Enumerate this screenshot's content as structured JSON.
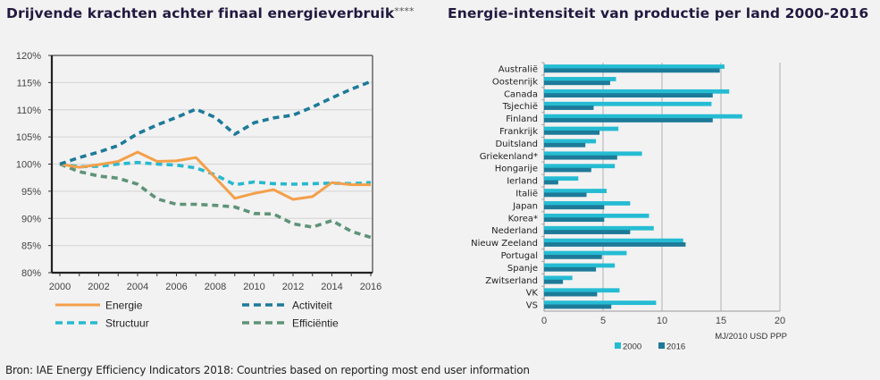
{
  "titles": {
    "left": "Drijvende krachten achter finaal energieverbruik",
    "left_suffix": "****",
    "right": "Energie-intensiteit van productie per land 2000-2016"
  },
  "footer": "Bron: IAE Energy Efficiency Indicators 2018: Countries based on reporting most end user information",
  "chart_data": [
    {
      "type": "line",
      "title": "Drijvende krachten achter finaal energieverbruik****",
      "xlabel": "",
      "ylabel": "",
      "x": [
        2000,
        2001,
        2002,
        2003,
        2004,
        2005,
        2006,
        2007,
        2008,
        2009,
        2010,
        2011,
        2012,
        2013,
        2014,
        2015,
        2016
      ],
      "xticks": [
        "2000",
        "2002",
        "2004",
        "2006",
        "2008",
        "2010",
        "2012",
        "2014",
        "2016"
      ],
      "yticks": [
        "80%",
        "85%",
        "90%",
        "95%",
        "100%",
        "105%",
        "110%",
        "115%",
        "120%"
      ],
      "ylim": [
        80,
        120
      ],
      "xlim": [
        2000,
        2016
      ],
      "grid": "horizontal",
      "legend_position": "bottom",
      "series": [
        {
          "name": "Energie",
          "style": "solid",
          "color": "#f4a04a",
          "values": [
            100,
            99.4,
            99.9,
            100.5,
            102.2,
            100.5,
            100.6,
            101.2,
            97.5,
            93.7,
            94.6,
            95.3,
            93.5,
            94.0,
            96.6,
            96.2,
            96.2
          ]
        },
        {
          "name": "Activiteit",
          "style": "dashed",
          "color": "#1e7a99",
          "values": [
            100,
            101.2,
            102.2,
            103.4,
            105.6,
            107.2,
            108.6,
            110.1,
            108.6,
            105.5,
            107.6,
            108.5,
            109.0,
            110.5,
            112.2,
            113.8,
            115.2
          ]
        },
        {
          "name": "Structuur",
          "style": "dashed",
          "color": "#25b9d0",
          "values": [
            100,
            99.5,
            99.6,
            100.0,
            100.3,
            100.0,
            99.8,
            99.3,
            98.0,
            96.2,
            96.7,
            96.4,
            96.3,
            96.4,
            96.5,
            96.4,
            96.6
          ]
        },
        {
          "name": "Efficiëntie",
          "style": "dashed",
          "color": "#5f9378",
          "values": [
            100,
            98.6,
            97.8,
            97.4,
            96.3,
            93.6,
            92.6,
            92.6,
            92.4,
            92.1,
            90.9,
            90.8,
            89.0,
            88.4,
            89.6,
            87.6,
            86.5
          ]
        }
      ]
    },
    {
      "type": "bar",
      "orientation": "horizontal",
      "title": "Energie-intensiteit van productie per land 2000-2016",
      "xlabel": "MJ/2010 USD PPP",
      "xlim": [
        0,
        20
      ],
      "xticks": [
        "0",
        "5",
        "10",
        "15",
        "20"
      ],
      "grid": "vertical",
      "legend_position": "bottom",
      "categories": [
        "Australië",
        "Oostenrijk",
        "Canada",
        "Tsjechië",
        "Finland",
        "Frankrijk",
        "Duitsland",
        "Griekenland*",
        "Hongarije",
        "Ierland",
        "Italië",
        "Japan",
        "Korea*",
        "Nederland",
        "Nieuw Zeeland",
        "Portugal",
        "Spanje",
        "Zwitserland",
        "VK",
        "VS"
      ],
      "series": [
        {
          "name": "2000",
          "color": "#25bcd3",
          "values": [
            15.3,
            6.1,
            15.7,
            14.2,
            16.8,
            6.3,
            4.4,
            8.3,
            6.0,
            2.9,
            5.3,
            7.3,
            8.9,
            9.3,
            11.8,
            7.0,
            6.0,
            2.4,
            6.4,
            9.5
          ]
        },
        {
          "name": "2016",
          "color": "#1d7a98",
          "values": [
            14.9,
            5.6,
            14.3,
            4.2,
            14.3,
            4.7,
            3.5,
            6.2,
            4.0,
            1.2,
            3.6,
            5.1,
            5.1,
            7.3,
            12.0,
            4.9,
            4.4,
            1.6,
            4.5,
            5.7
          ]
        }
      ]
    }
  ]
}
